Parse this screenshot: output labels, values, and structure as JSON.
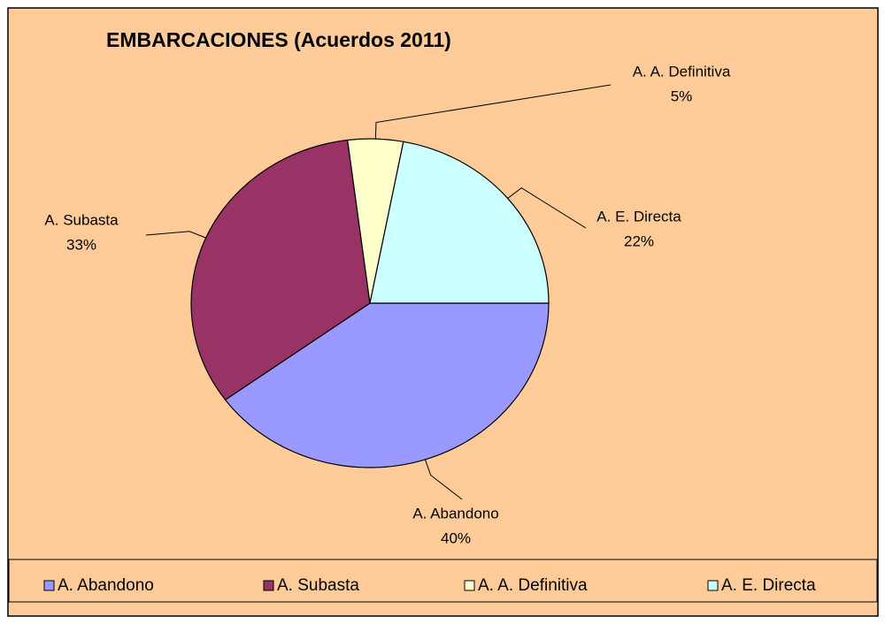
{
  "chart_data": {
    "type": "pie",
    "title": "EMBARCACIONES (Acuerdos 2011)",
    "categories": [
      "A. Abandono",
      "A. Subasta",
      "A. A. Definitiva",
      "A. E. Directa"
    ],
    "values": [
      40,
      33,
      5,
      22
    ],
    "value_labels": [
      "40%",
      "33%",
      "5%",
      "22%"
    ],
    "colors": [
      "#9999ff",
      "#993366",
      "#ffffcc",
      "#ccffff"
    ],
    "legend": "bottom"
  }
}
